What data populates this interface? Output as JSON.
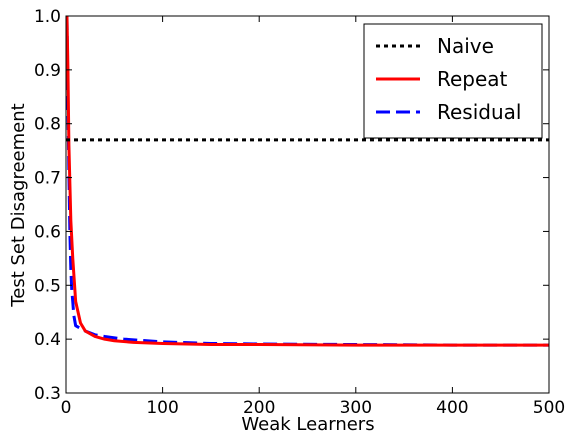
{
  "chart_data": {
    "type": "line",
    "title": "",
    "xlabel": "Weak Learners",
    "ylabel": "Test Set Disagreement",
    "xlim": [
      0,
      500
    ],
    "ylim": [
      0.3,
      1.0
    ],
    "x_ticks": [
      0,
      100,
      200,
      300,
      400,
      500
    ],
    "y_ticks": [
      0.3,
      0.4,
      0.5,
      0.6,
      0.7,
      0.8,
      0.9,
      1.0
    ],
    "x_tick_labels": [
      "0",
      "100",
      "200",
      "300",
      "400",
      "500"
    ],
    "y_tick_labels": [
      "0.3",
      "0.4",
      "0.5",
      "0.6",
      "0.7",
      "0.8",
      "0.9",
      "1.0"
    ],
    "grid": false,
    "legend_position": "top-right",
    "series": [
      {
        "name": "Naive",
        "color": "#000000",
        "style": "dotted",
        "x": [
          0,
          500
        ],
        "y": [
          0.77,
          0.77
        ]
      },
      {
        "name": "Repeat",
        "color": "#ff0000",
        "style": "solid",
        "x": [
          1,
          2,
          3,
          5,
          7,
          10,
          15,
          20,
          30,
          40,
          50,
          70,
          100,
          150,
          200,
          300,
          400,
          500
        ],
        "y": [
          1.0,
          0.9,
          0.76,
          0.62,
          0.55,
          0.47,
          0.43,
          0.415,
          0.405,
          0.4,
          0.397,
          0.394,
          0.392,
          0.39,
          0.39,
          0.389,
          0.389,
          0.389
        ]
      },
      {
        "name": "Residual",
        "color": "#0000ff",
        "style": "dashed",
        "x": [
          1,
          2,
          3,
          4,
          5,
          6,
          7,
          8,
          10,
          15,
          20,
          30,
          40,
          60,
          100,
          150,
          200,
          300,
          400,
          500
        ],
        "y": [
          1.0,
          0.84,
          0.71,
          0.6,
          0.53,
          0.49,
          0.47,
          0.445,
          0.425,
          0.42,
          0.415,
          0.408,
          0.405,
          0.4,
          0.395,
          0.392,
          0.391,
          0.39,
          0.389,
          0.389
        ]
      }
    ]
  }
}
